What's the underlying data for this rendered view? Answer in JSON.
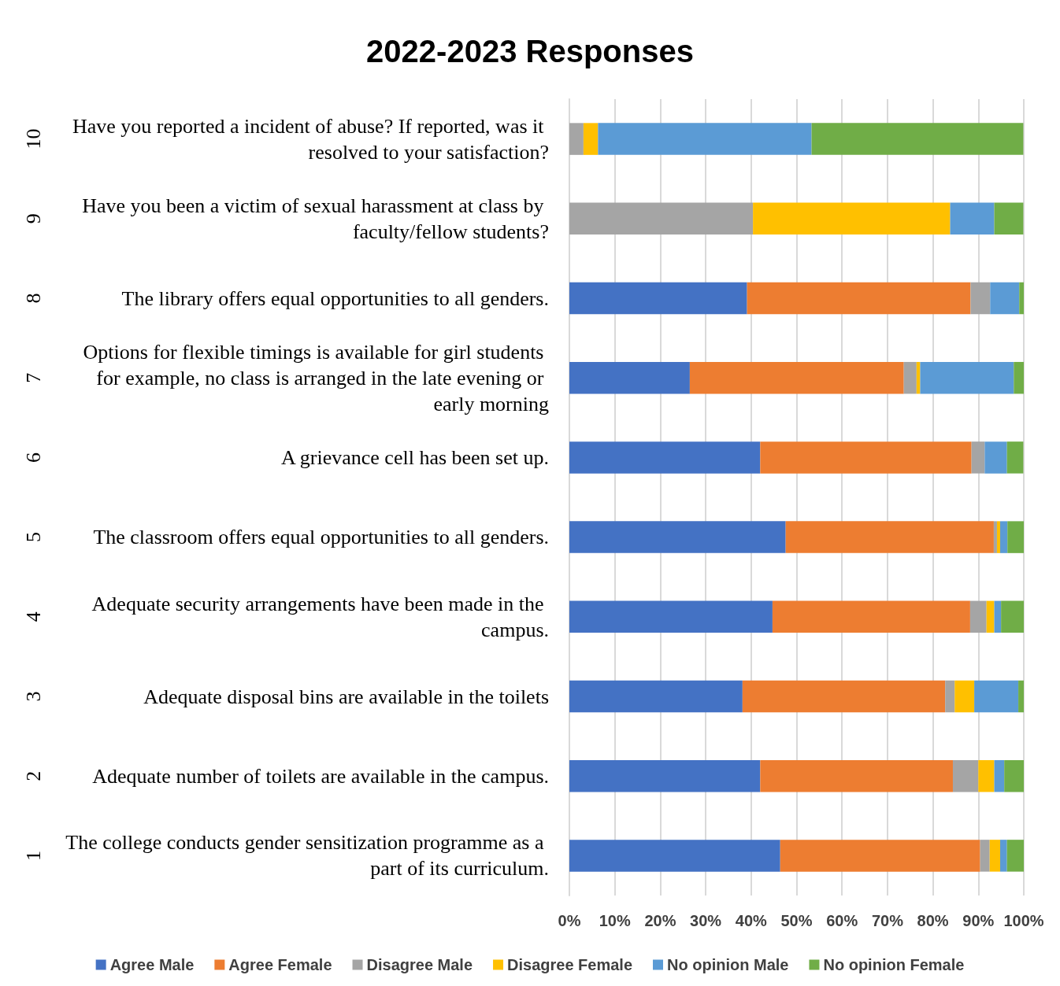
{
  "chart_data": {
    "type": "bar",
    "title": "2022-2023 Responses",
    "orientation": "horizontal",
    "stacked": true,
    "categories": [
      "Have you reported a incident of abuse? If reported, was it resolved to your satisfaction?",
      "Have you been a victim of sexual harassment at class by faculty/fellow students?",
      "The library offers equal opportunities to all genders.",
      "Options for flexible timings is available for girl students for example, no class is arranged in the late evening or early morning",
      "A grievance cell has been set up.",
      "The classroom offers equal opportunities to all genders.",
      "Adequate security arrangements have been made in the campus.",
      "Adequate disposal bins are available in the toilets",
      "Adequate number of toilets are available in the campus.",
      "The college conducts gender sensitization programme as a part of its curriculum."
    ],
    "annotations": [
      "10",
      "9",
      "8",
      "7",
      "6",
      "5",
      "4",
      "3",
      "2",
      "1"
    ],
    "series": [
      {
        "name": "Agree Male",
        "color": "#4472c4",
        "values": [
          0,
          0,
          39.1,
          26.5,
          42.0,
          47.6,
          44.7,
          38.1,
          42.0,
          46.4
        ]
      },
      {
        "name": "Agree Female",
        "color": "#ed7d31",
        "values": [
          0,
          0,
          49.2,
          47.1,
          46.5,
          45.8,
          43.5,
          44.6,
          42.4,
          44.0
        ]
      },
      {
        "name": "Disagree Male",
        "color": "#a5a5a5",
        "values": [
          3.1,
          40.4,
          4.3,
          2.8,
          2.9,
          0.7,
          3.6,
          2.1,
          5.6,
          2.1
        ]
      },
      {
        "name": "Disagree Female",
        "color": "#ffc000",
        "values": [
          3.2,
          43.4,
          0,
          0.8,
          0,
          0.7,
          1.7,
          4.3,
          3.5,
          2.3
        ]
      },
      {
        "name": "No opinion Male",
        "color": "#5b9bd5",
        "values": [
          47.0,
          9.7,
          6.4,
          20.6,
          4.9,
          1.6,
          1.5,
          9.7,
          2.2,
          1.5
        ]
      },
      {
        "name": "No opinion Female",
        "color": "#70ad47",
        "values": [
          46.6,
          6.4,
          1.0,
          2.3,
          3.6,
          3.6,
          5.0,
          1.2,
          4.3,
          3.7
        ]
      }
    ],
    "xlim": [
      0,
      100
    ],
    "xticks": [
      {
        "value": 0,
        "label": "0%"
      },
      {
        "value": 10,
        "label": "10%"
      },
      {
        "value": 20,
        "label": "20%"
      },
      {
        "value": 30,
        "label": "30%"
      },
      {
        "value": 40,
        "label": "40%"
      },
      {
        "value": 50,
        "label": "50%"
      },
      {
        "value": 60,
        "label": "60%"
      },
      {
        "value": 70,
        "label": "70%"
      },
      {
        "value": 80,
        "label": "80%"
      },
      {
        "value": 90,
        "label": "90%"
      },
      {
        "value": 100,
        "label": "100%"
      }
    ],
    "grid": "x",
    "legend": "bottom"
  }
}
